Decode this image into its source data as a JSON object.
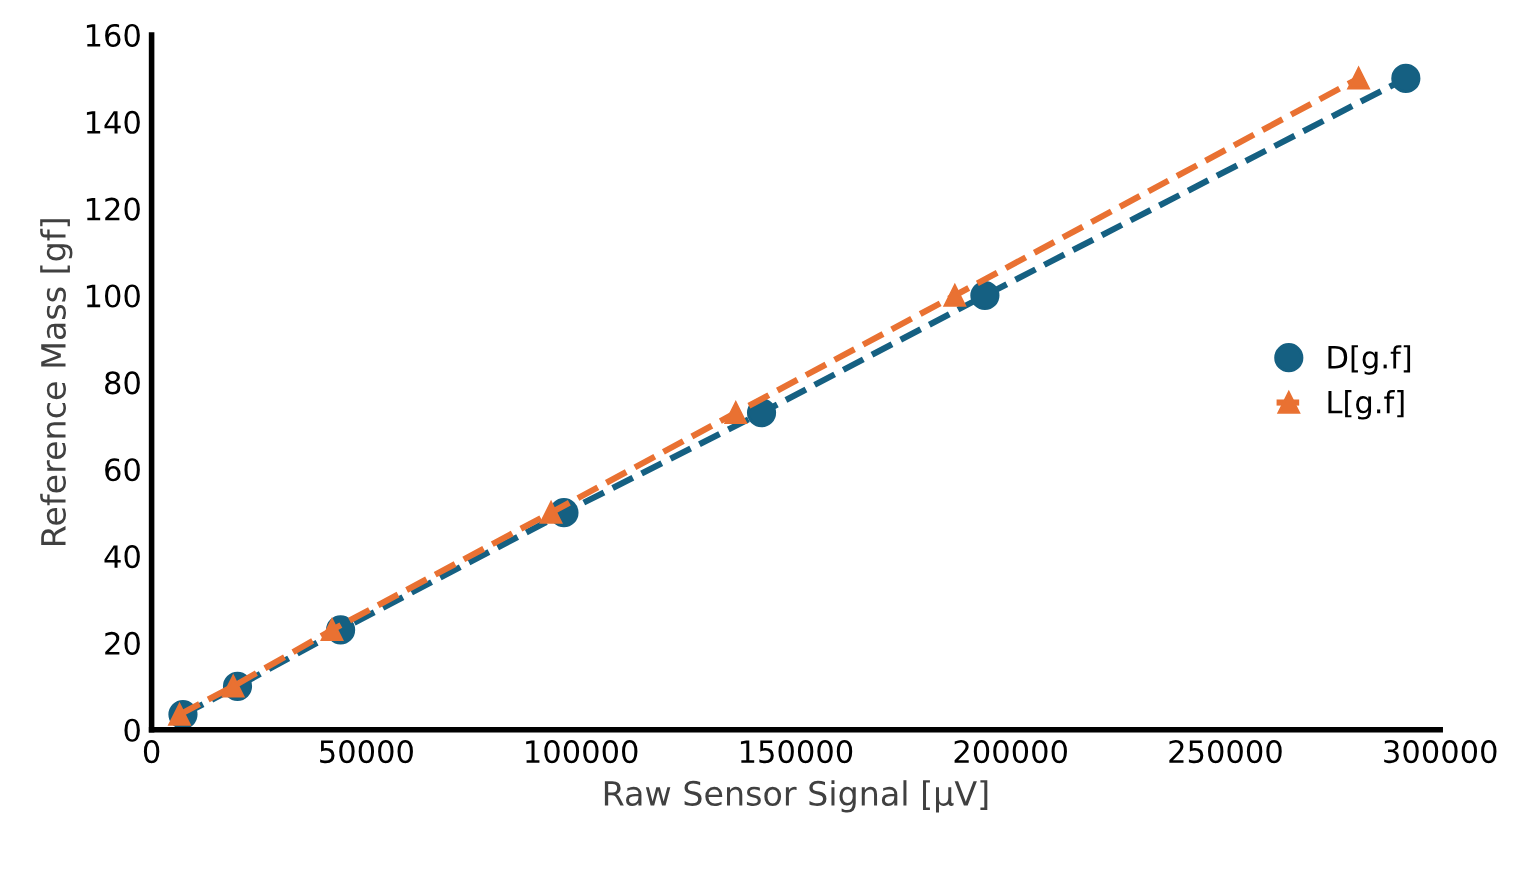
{
  "chart_data": {
    "type": "line",
    "xlabel": "Raw Sensor Signal [µV]",
    "ylabel": "Reference Mass [gf]",
    "xlim": [
      0,
      300000
    ],
    "xticks": [
      0,
      50000,
      100000,
      150000,
      200000,
      250000,
      300000
    ],
    "ylim": [
      0,
      160
    ],
    "yticks": [
      0,
      20,
      40,
      60,
      80,
      100,
      120,
      140,
      160
    ],
    "grid": false,
    "legend": "right",
    "line_style": "dashed",
    "series": [
      {
        "name": "D[g.f]",
        "color": "#156082",
        "marker": "circle",
        "x": [
          7300,
          20000,
          44000,
          96000,
          142000,
          194000,
          292000
        ],
        "values": [
          3.5,
          10,
          23,
          50,
          73,
          100,
          150
        ]
      },
      {
        "name": "L[g.f]",
        "color": "#e97132",
        "marker": "triangle",
        "x": [
          6500,
          19000,
          42000,
          93000,
          136000,
          187000,
          281000
        ],
        "values": [
          3.5,
          10,
          23,
          50,
          73,
          100,
          150
        ]
      }
    ]
  }
}
